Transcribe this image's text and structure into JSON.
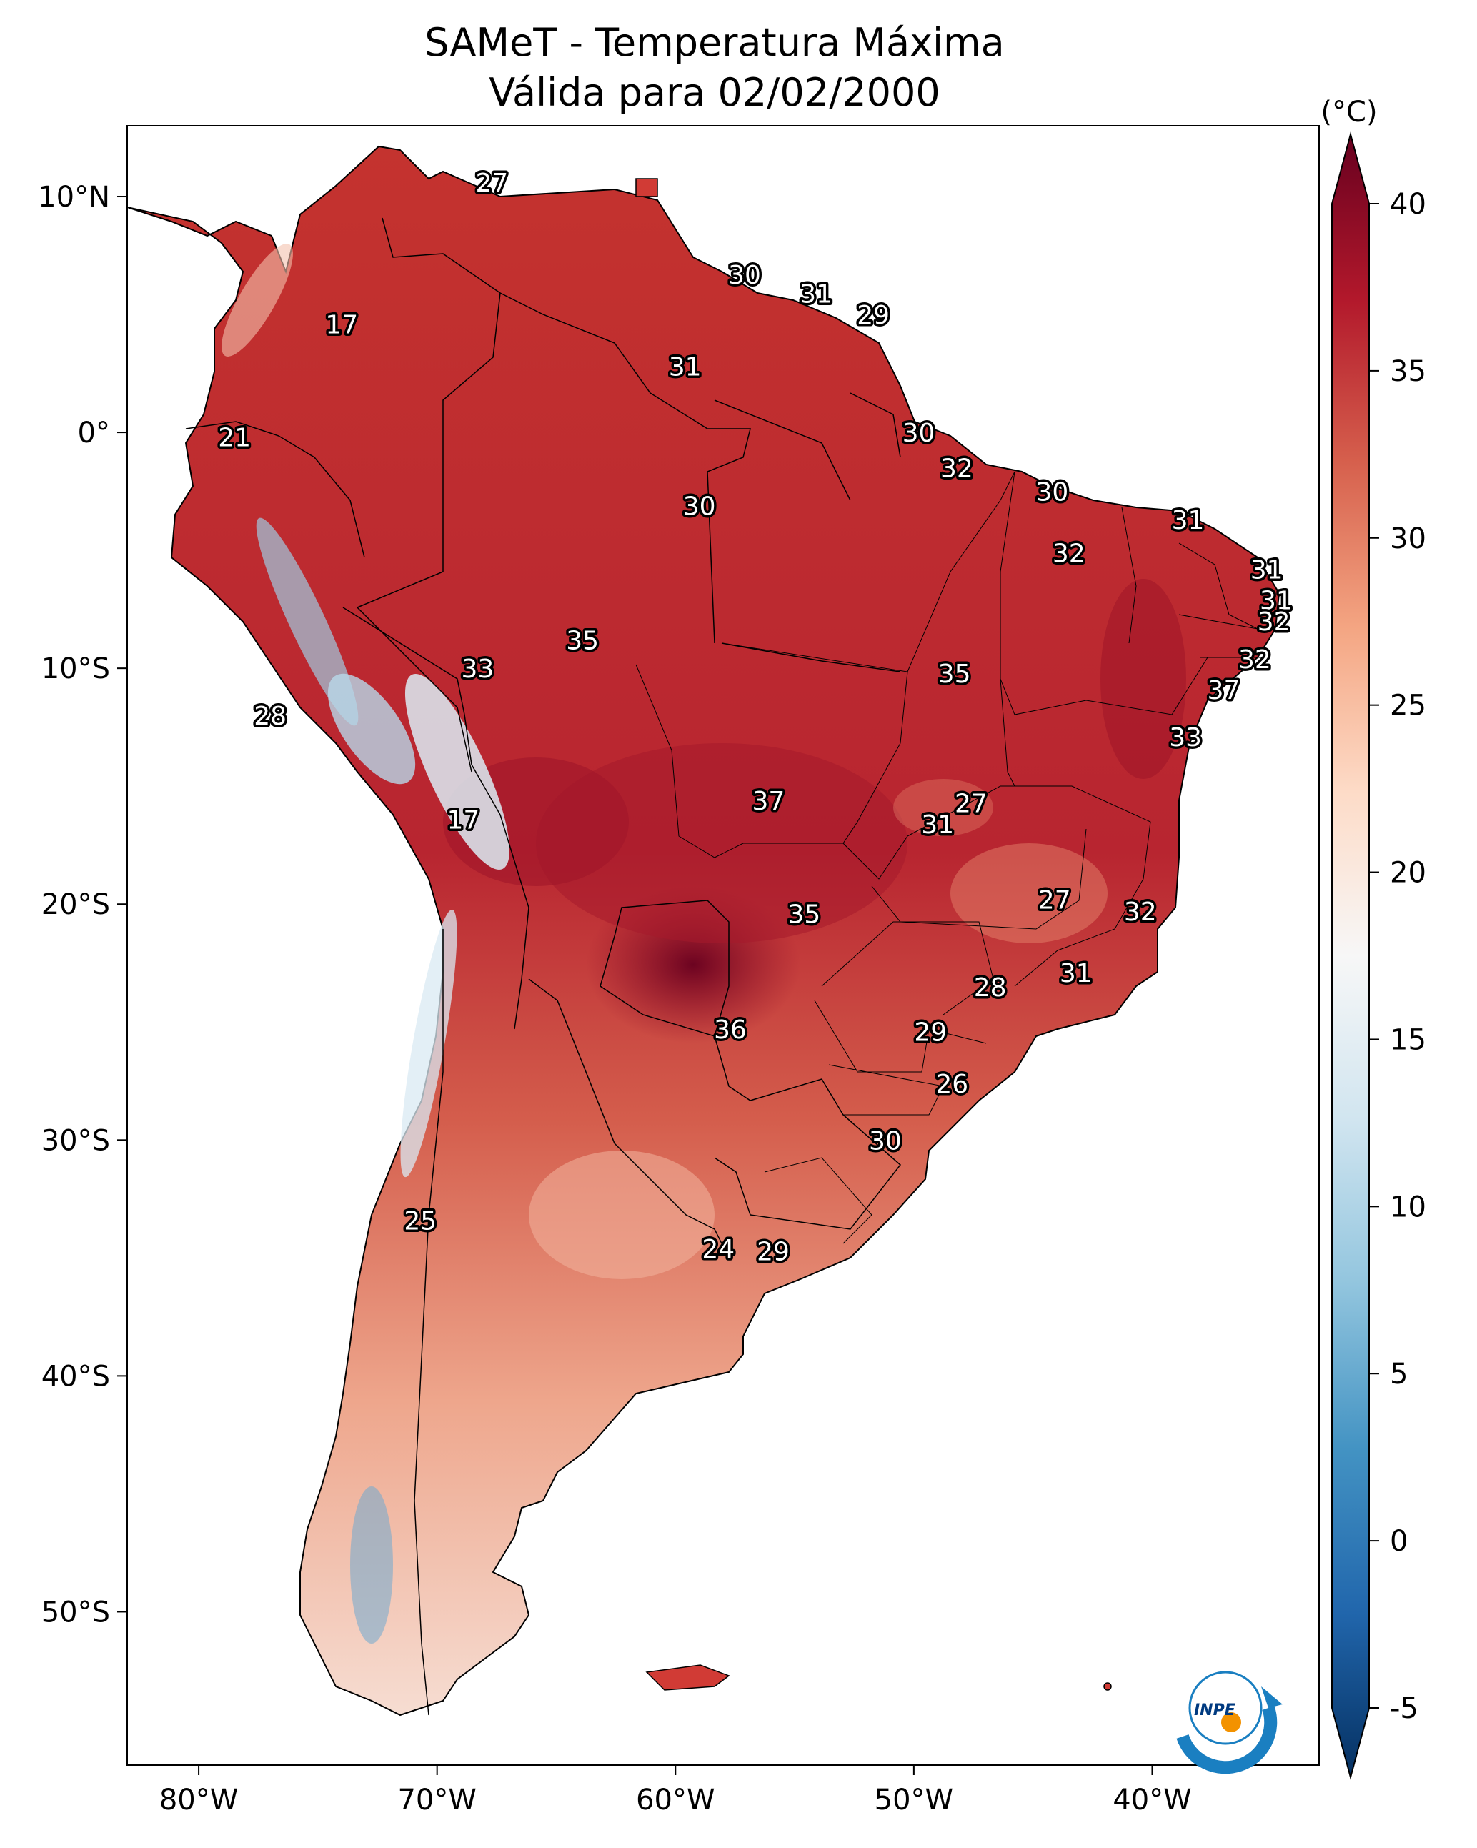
{
  "title_line1": "SAMeT - Temperatura Máxima",
  "title_line2": "Válida para 02/02/2000",
  "colorbar": {
    "unit": "(°C)",
    "ticks": [
      {
        "value": 40,
        "label": "40"
      },
      {
        "value": 35,
        "label": "35"
      },
      {
        "value": 30,
        "label": "30"
      },
      {
        "value": 25,
        "label": "25"
      },
      {
        "value": 20,
        "label": "20"
      },
      {
        "value": 15,
        "label": "15"
      },
      {
        "value": 10,
        "label": "10"
      },
      {
        "value": 5,
        "label": "5"
      },
      {
        "value": 0,
        "label": "0"
      },
      {
        "value": -5,
        "label": "-5"
      }
    ],
    "colors": [
      "#053061",
      "#2166ac",
      "#4393c3",
      "#92c5de",
      "#d1e5f0",
      "#f7f7f7",
      "#fddbc7",
      "#f4a582",
      "#d6604d",
      "#b2182b",
      "#67001f"
    ]
  },
  "axes": {
    "lon_min": -83,
    "lon_max": -33,
    "lat_min": -56.5,
    "lat_max": 13,
    "x_ticks": [
      {
        "value": -80,
        "label": "80°W"
      },
      {
        "value": -70,
        "label": "70°W"
      },
      {
        "value": -60,
        "label": "60°W"
      },
      {
        "value": -50,
        "label": "50°W"
      },
      {
        "value": -40,
        "label": "40°W"
      }
    ],
    "y_ticks": [
      {
        "value": 10,
        "label": "10°N"
      },
      {
        "value": 0,
        "label": "0°"
      },
      {
        "value": -10,
        "label": "10°S"
      },
      {
        "value": -20,
        "label": "20°S"
      },
      {
        "value": -30,
        "label": "30°S"
      },
      {
        "value": -40,
        "label": "40°S"
      },
      {
        "value": -50,
        "label": "50°S"
      }
    ]
  },
  "station_labels": [
    {
      "lon": -67.7,
      "lat": 10.6,
      "text": "27"
    },
    {
      "lon": -57.1,
      "lat": 6.7,
      "text": "30"
    },
    {
      "lon": -54.1,
      "lat": 5.9,
      "text": "31"
    },
    {
      "lon": -51.7,
      "lat": 5.0,
      "text": "29"
    },
    {
      "lon": -74.0,
      "lat": 4.6,
      "text": "17"
    },
    {
      "lon": -59.6,
      "lat": 2.8,
      "text": "31"
    },
    {
      "lon": -78.5,
      "lat": -0.2,
      "text": "21"
    },
    {
      "lon": -49.8,
      "lat": 0.0,
      "text": "30"
    },
    {
      "lon": -48.2,
      "lat": -1.5,
      "text": "32"
    },
    {
      "lon": -59.0,
      "lat": -3.1,
      "text": "30"
    },
    {
      "lon": -44.2,
      "lat": -2.5,
      "text": "30"
    },
    {
      "lon": -38.5,
      "lat": -3.7,
      "text": "31"
    },
    {
      "lon": -43.5,
      "lat": -5.1,
      "text": "32"
    },
    {
      "lon": -35.2,
      "lat": -5.8,
      "text": "31"
    },
    {
      "lon": -34.8,
      "lat": -7.1,
      "text": "31"
    },
    {
      "lon": -34.9,
      "lat": -8.0,
      "text": "32"
    },
    {
      "lon": -63.9,
      "lat": -8.8,
      "text": "35"
    },
    {
      "lon": -68.3,
      "lat": -10.0,
      "text": "33"
    },
    {
      "lon": -48.3,
      "lat": -10.2,
      "text": "35"
    },
    {
      "lon": -35.7,
      "lat": -9.6,
      "text": "32"
    },
    {
      "lon": -37.0,
      "lat": -10.9,
      "text": "37"
    },
    {
      "lon": -77.0,
      "lat": -12.0,
      "text": "28"
    },
    {
      "lon": -38.6,
      "lat": -12.9,
      "text": "33"
    },
    {
      "lon": -56.1,
      "lat": -15.6,
      "text": "37"
    },
    {
      "lon": -47.6,
      "lat": -15.7,
      "text": "27"
    },
    {
      "lon": -68.9,
      "lat": -16.4,
      "text": "17"
    },
    {
      "lon": -49.0,
      "lat": -16.6,
      "text": "31"
    },
    {
      "lon": -44.1,
      "lat": -19.8,
      "text": "27"
    },
    {
      "lon": -40.5,
      "lat": -20.3,
      "text": "32"
    },
    {
      "lon": -54.6,
      "lat": -20.4,
      "text": "35"
    },
    {
      "lon": -43.2,
      "lat": -22.9,
      "text": "31"
    },
    {
      "lon": -46.8,
      "lat": -23.5,
      "text": "28"
    },
    {
      "lon": -57.7,
      "lat": -25.3,
      "text": "36"
    },
    {
      "lon": -49.3,
      "lat": -25.4,
      "text": "29"
    },
    {
      "lon": -48.4,
      "lat": -27.6,
      "text": "26"
    },
    {
      "lon": -51.2,
      "lat": -30.0,
      "text": "30"
    },
    {
      "lon": -70.7,
      "lat": -33.4,
      "text": "25"
    },
    {
      "lon": -58.2,
      "lat": -34.6,
      "text": "24"
    },
    {
      "lon": -55.9,
      "lat": -34.7,
      "text": "29"
    }
  ],
  "logo": {
    "text": "INPE"
  }
}
